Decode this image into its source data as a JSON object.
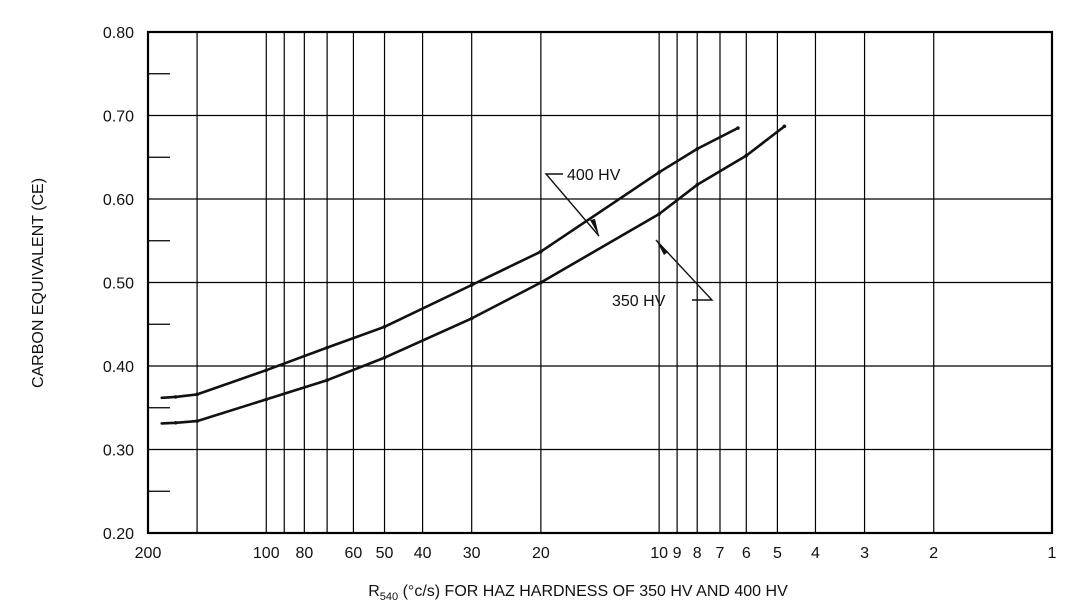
{
  "chart_data": {
    "type": "line",
    "title": "",
    "xlabel_main": "R",
    "xlabel_sub": "540",
    "xlabel_rest": " (°c/s) FOR HAZ HARDNESS OF 350 HV AND 400 HV",
    "ylabel": "CARBON EQUIVALENT (CE)",
    "x_scale": "log",
    "x_reversed": true,
    "xlim": [
      200,
      1
    ],
    "ylim": [
      0.2,
      0.8
    ],
    "grid": true,
    "x_ticks": [
      200,
      100,
      80,
      60,
      50,
      40,
      30,
      20,
      10,
      9,
      8,
      7,
      6,
      5,
      4,
      3,
      2,
      1
    ],
    "x_tick_labels": [
      "200",
      "100",
      "80",
      "60",
      "50",
      "40",
      "30",
      "20",
      "10",
      "9",
      "8",
      "7",
      "6",
      "5",
      "4",
      "3",
      "2",
      "1"
    ],
    "x_gridlines": [
      150,
      100,
      90,
      80,
      70,
      60,
      50,
      40,
      30,
      20,
      10,
      9,
      8,
      7,
      6,
      5,
      4,
      3,
      2
    ],
    "y_ticks": [
      0.2,
      0.3,
      0.4,
      0.5,
      0.6,
      0.7,
      0.8
    ],
    "y_tick_labels": [
      "0.20",
      "0.30",
      "0.40",
      "0.50",
      "0.60",
      "0.70",
      "0.80"
    ],
    "y_minor_ticks": [
      0.25,
      0.35,
      0.45,
      0.55,
      0.65,
      0.75
    ],
    "series": [
      {
        "name": "400 HV",
        "points": [
          [
            170,
            0.363
          ],
          [
            150,
            0.366
          ],
          [
            100,
            0.395
          ],
          [
            70,
            0.422
          ],
          [
            50,
            0.447
          ],
          [
            30,
            0.497
          ],
          [
            20,
            0.537
          ],
          [
            10,
            0.632
          ],
          [
            8,
            0.66
          ],
          [
            6.3,
            0.685
          ]
        ]
      },
      {
        "name": "350 HV",
        "points": [
          [
            170,
            0.332
          ],
          [
            150,
            0.334
          ],
          [
            100,
            0.36
          ],
          [
            70,
            0.383
          ],
          [
            50,
            0.41
          ],
          [
            30,
            0.457
          ],
          [
            20,
            0.5
          ],
          [
            10,
            0.582
          ],
          [
            8,
            0.617
          ],
          [
            6,
            0.652
          ],
          [
            4.8,
            0.687
          ]
        ]
      }
    ],
    "annotations": [
      {
        "text": "400 HV",
        "series": "400 HV"
      },
      {
        "text": "350 HV",
        "series": "350 HV"
      }
    ]
  }
}
